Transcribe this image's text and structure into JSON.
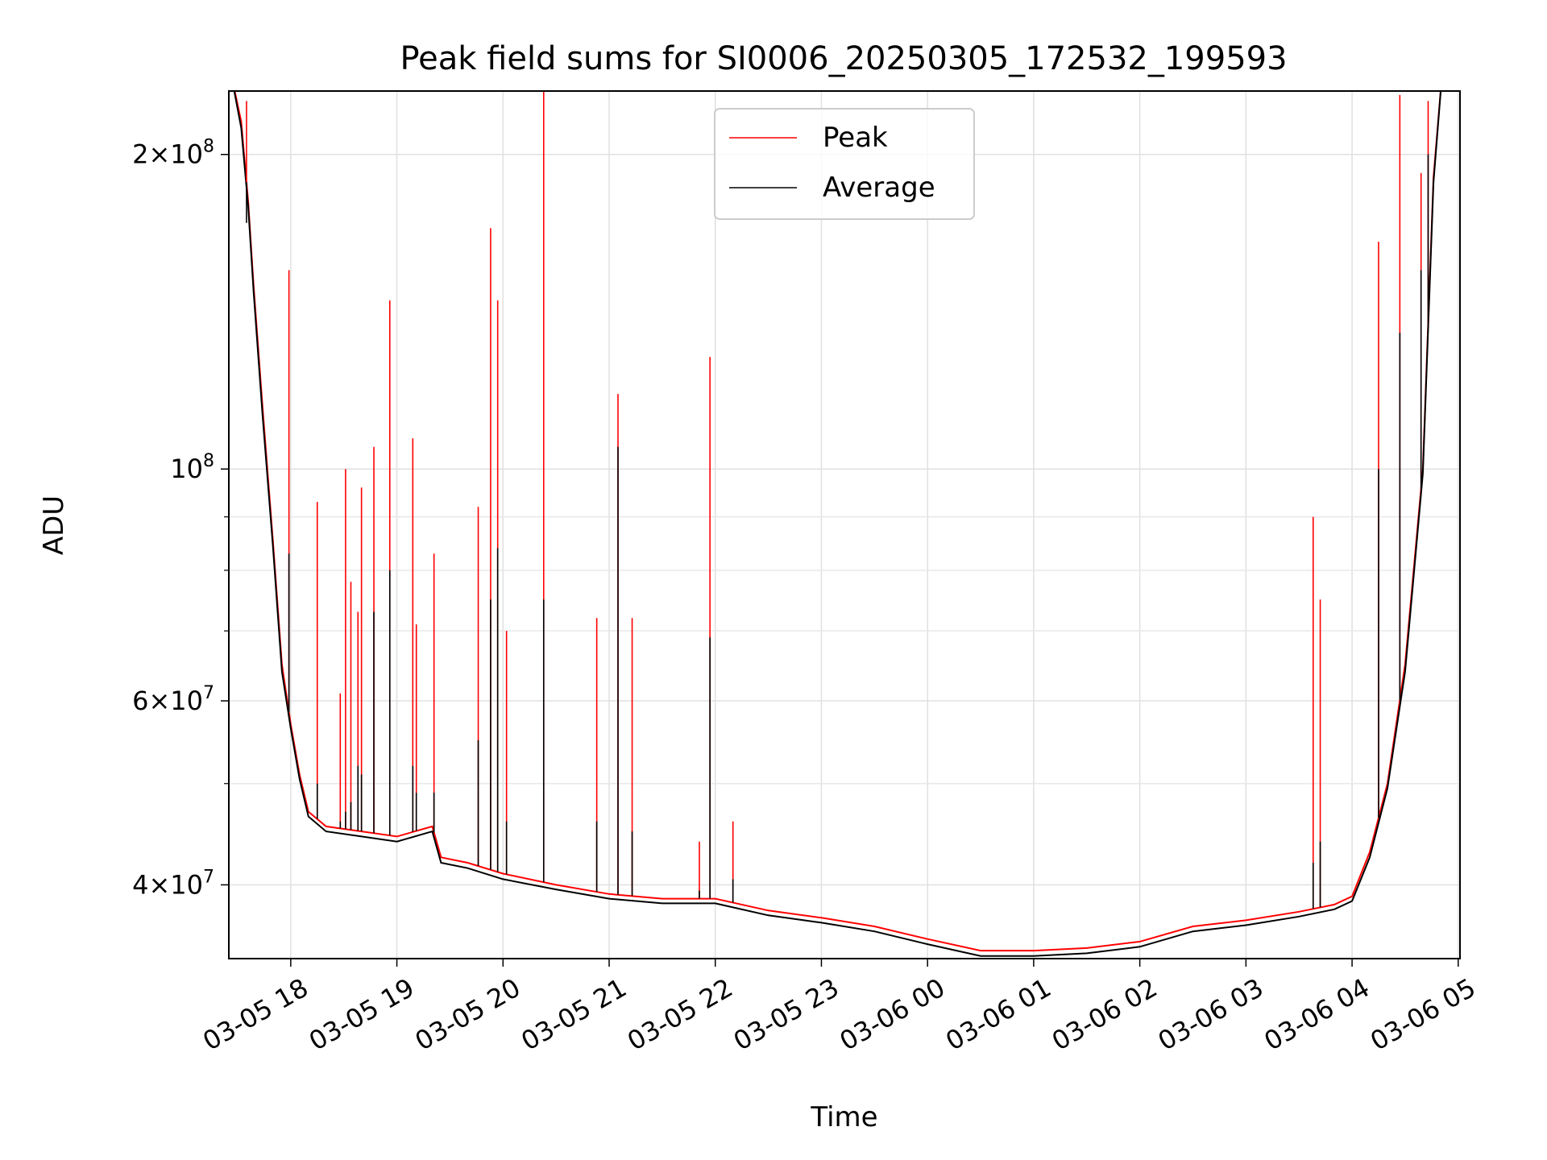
{
  "chart_data": {
    "type": "line",
    "title": "Peak field sums for SI0006_20250305_172532_199593",
    "xlabel": "Time",
    "ylabel": "ADU",
    "yscale": "log",
    "ylim": [
      34000000,
      230000000
    ],
    "xlim": [
      "2025-03-05 17:25",
      "2025-03-06 05:01"
    ],
    "grid": true,
    "legend_position": "top-center",
    "x_tick_labels": [
      "03-05 18",
      "03-05 19",
      "03-05 20",
      "03-05 21",
      "03-05 22",
      "03-05 23",
      "03-06 00",
      "03-06 01",
      "03-06 02",
      "03-06 03",
      "03-06 04",
      "03-06 05"
    ],
    "y_tick_labels": [
      {
        "value": 200000000,
        "mantissa": "2",
        "exp": "8"
      },
      {
        "value": 100000000,
        "mantissa": "",
        "exp": "8"
      },
      {
        "value": 60000000,
        "mantissa": "6",
        "exp": "7"
      },
      {
        "value": 40000000,
        "mantissa": "4",
        "exp": "7"
      }
    ],
    "y_times_sign": "×",
    "y_base": "10",
    "series": [
      {
        "name": "Peak",
        "color": "#ff0000",
        "x": [
          "2025-03-05 17:26",
          "2025-03-05 17:32",
          "2025-03-05 17:36",
          "2025-03-05 17:39",
          "2025-03-05 17:44",
          "2025-03-05 17:50",
          "2025-03-05 17:55",
          "2025-03-05 18:00",
          "2025-03-05 18:05",
          "2025-03-05 18:10",
          "2025-03-05 18:20",
          "2025-03-05 18:40",
          "2025-03-05 19:00",
          "2025-03-05 19:20",
          "2025-03-05 19:25",
          "2025-03-05 19:40",
          "2025-03-05 20:00",
          "2025-03-05 20:30",
          "2025-03-05 21:00",
          "2025-03-05 21:30",
          "2025-03-05 22:00",
          "2025-03-05 22:30",
          "2025-03-05 23:00",
          "2025-03-05 23:30",
          "2025-03-06 00:00",
          "2025-03-06 00:30",
          "2025-03-06 01:00",
          "2025-03-06 01:30",
          "2025-03-06 02:00",
          "2025-03-06 02:30",
          "2025-03-06 03:00",
          "2025-03-06 03:30",
          "2025-03-06 03:50",
          "2025-03-06 04:00",
          "2025-03-06 04:10",
          "2025-03-06 04:20",
          "2025-03-06 04:30",
          "2025-03-06 04:40",
          "2025-03-06 04:46",
          "2025-03-06 04:51"
        ],
        "values": [
          240000000,
          215000000,
          180000000,
          150000000,
          115000000,
          85000000,
          65000000,
          57000000,
          51000000,
          47000000,
          45500000,
          45000000,
          44500000,
          45500000,
          42500000,
          42000000,
          41000000,
          40000000,
          39200000,
          38800000,
          38800000,
          37800000,
          37200000,
          36500000,
          35500000,
          34600000,
          34600000,
          34800000,
          35300000,
          36500000,
          37000000,
          37700000,
          38300000,
          39000000,
          43000000,
          50000000,
          65000000,
          100000000,
          190000000,
          240000000
        ]
      },
      {
        "name": "Average",
        "color": "#000000",
        "x": [
          "2025-03-05 17:26",
          "2025-03-05 17:32",
          "2025-03-05 17:36",
          "2025-03-05 17:39",
          "2025-03-05 17:44",
          "2025-03-05 17:50",
          "2025-03-05 17:55",
          "2025-03-05 18:00",
          "2025-03-05 18:05",
          "2025-03-05 18:10",
          "2025-03-05 18:20",
          "2025-03-05 18:40",
          "2025-03-05 19:00",
          "2025-03-05 19:20",
          "2025-03-05 19:25",
          "2025-03-05 19:40",
          "2025-03-05 20:00",
          "2025-03-05 20:30",
          "2025-03-05 21:00",
          "2025-03-05 21:30",
          "2025-03-05 22:00",
          "2025-03-05 22:30",
          "2025-03-05 23:00",
          "2025-03-05 23:30",
          "2025-03-06 00:00",
          "2025-03-06 00:30",
          "2025-03-06 01:00",
          "2025-03-06 01:30",
          "2025-03-06 02:00",
          "2025-03-06 02:30",
          "2025-03-06 03:00",
          "2025-03-06 03:30",
          "2025-03-06 03:50",
          "2025-03-06 04:00",
          "2025-03-06 04:10",
          "2025-03-06 04:20",
          "2025-03-06 04:30",
          "2025-03-06 04:40",
          "2025-03-06 04:46",
          "2025-03-06 04:51"
        ],
        "values": [
          240000000,
          212000000,
          178000000,
          148000000,
          113000000,
          84000000,
          64000000,
          56500000,
          50500000,
          46500000,
          45000000,
          44500000,
          44000000,
          45000000,
          42000000,
          41500000,
          40500000,
          39600000,
          38800000,
          38400000,
          38400000,
          37400000,
          36800000,
          36100000,
          35100000,
          34200000,
          34200000,
          34400000,
          34900000,
          36100000,
          36600000,
          37300000,
          37900000,
          38600000,
          42500000,
          49500000,
          64000000,
          99000000,
          188000000,
          240000000
        ]
      }
    ],
    "spikes": [
      {
        "x": "2025-03-05 17:35",
        "peak": 225000000,
        "average": 172000000
      },
      {
        "x": "2025-03-05 17:59",
        "peak": 155000000,
        "average": 83000000
      },
      {
        "x": "2025-03-05 18:15",
        "peak": 93000000,
        "average": 50000000
      },
      {
        "x": "2025-03-05 18:28",
        "peak": 61000000,
        "average": 46000000
      },
      {
        "x": "2025-03-05 18:31",
        "peak": 100000000,
        "average": 47000000
      },
      {
        "x": "2025-03-05 18:34",
        "peak": 78000000,
        "average": 48000000
      },
      {
        "x": "2025-03-05 18:38",
        "peak": 73000000,
        "average": 52000000
      },
      {
        "x": "2025-03-05 18:40",
        "peak": 96000000,
        "average": 51000000
      },
      {
        "x": "2025-03-05 18:47",
        "peak": 105000000,
        "average": 73000000
      },
      {
        "x": "2025-03-05 18:56",
        "peak": 145000000,
        "average": 80000000
      },
      {
        "x": "2025-03-05 19:09",
        "peak": 107000000,
        "average": 52000000
      },
      {
        "x": "2025-03-05 19:11",
        "peak": 71000000,
        "average": 49000000
      },
      {
        "x": "2025-03-05 19:21",
        "peak": 83000000,
        "average": 49000000
      },
      {
        "x": "2025-03-05 19:46",
        "peak": 92000000,
        "average": 55000000
      },
      {
        "x": "2025-03-05 19:53",
        "peak": 170000000,
        "average": 75000000
      },
      {
        "x": "2025-03-05 19:57",
        "peak": 145000000,
        "average": 84000000
      },
      {
        "x": "2025-03-05 20:02",
        "peak": 70000000,
        "average": 46000000
      },
      {
        "x": "2025-03-05 20:23",
        "peak": 230000000,
        "average": 75000000
      },
      {
        "x": "2025-03-05 20:53",
        "peak": 72000000,
        "average": 46000000
      },
      {
        "x": "2025-03-05 21:05",
        "peak": 118000000,
        "average": 105000000
      },
      {
        "x": "2025-03-05 21:13",
        "peak": 72000000,
        "average": 45000000
      },
      {
        "x": "2025-03-05 21:51",
        "peak": 44000000,
        "average": 39500000
      },
      {
        "x": "2025-03-05 21:57",
        "peak": 128000000,
        "average": 69000000
      },
      {
        "x": "2025-03-05 22:10",
        "peak": 46000000,
        "average": 40500000
      },
      {
        "x": "2025-03-06 03:38",
        "peak": 90000000,
        "average": 42000000
      },
      {
        "x": "2025-03-06 03:42",
        "peak": 75000000,
        "average": 44000000
      },
      {
        "x": "2025-03-06 04:15",
        "peak": 165000000,
        "average": 100000000
      },
      {
        "x": "2025-03-06 04:27",
        "peak": 228000000,
        "average": 135000000
      },
      {
        "x": "2025-03-06 04:39",
        "peak": 192000000,
        "average": 155000000
      },
      {
        "x": "2025-03-06 04:43",
        "peak": 225000000,
        "average": 200000000
      }
    ]
  }
}
